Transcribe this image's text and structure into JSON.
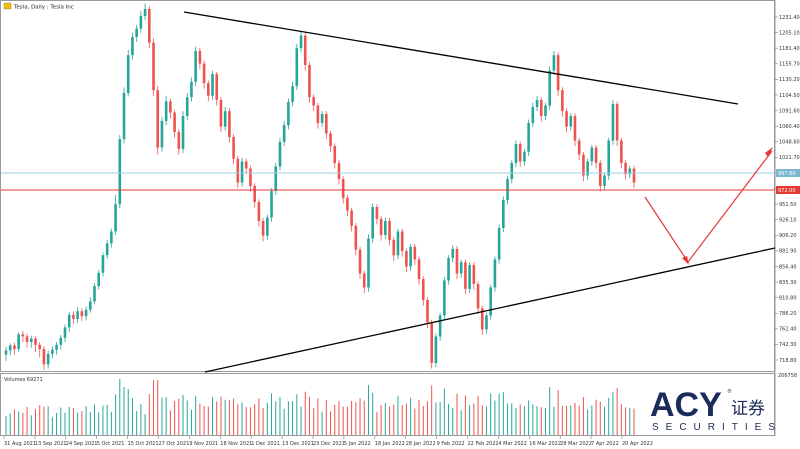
{
  "header": {
    "symbol_label": "Tesla, Daily : Tesla Inc"
  },
  "volume_panel": {
    "label": "Volumes 69271",
    "max_label": "206758"
  },
  "price_axis": {
    "ticks": [
      "1231.40",
      "1205.10",
      "1181.40",
      "1155.70",
      "1130.20",
      "1104.50",
      "1091.60",
      "1060.40",
      "1048.60",
      "1021.70",
      "996.10",
      "971.70",
      "951.50",
      "926.10",
      "906.20",
      "881.90",
      "856.40",
      "835.30",
      "810.80",
      "786.20",
      "762.40",
      "742.30",
      "718.80"
    ],
    "current_price_label": "997.80",
    "support_price_label": "972.00"
  },
  "time_axis": {
    "labels": [
      "31 Aug 2021",
      "13 Sep 2021",
      "24 Sep 2021",
      "5 Oct 2021",
      "15 Oct 2021",
      "27 Oct 2021",
      "9 Nov 2021",
      "18 Nov 2021",
      "1 Dec 2021",
      "13 Dec 2021",
      "23 Dec 2021",
      "5 Jan 2022",
      "18 Jan 2022",
      "28 Jan 2022",
      "9 Feb 2022",
      "22 Feb 2022",
      "4 Mar 2022",
      "16 Mar 2022",
      "28 Mar 2022",
      "7 Apr 2022",
      "20 Apr 2022"
    ]
  },
  "logo": {
    "brand": "ACY",
    "chinese": "证券",
    "subtitle": "SECURITIES",
    "registered": "®"
  },
  "colors": {
    "bull": "#26a69a",
    "bear": "#ef5350",
    "resistance": "#000000",
    "support_line": "#e53935",
    "price_line": "#9ecfe0",
    "arrow": "#e53935",
    "logo_navy": "#1b2b5a"
  },
  "chart_data": {
    "type": "candlestick",
    "title": "Tesla, Daily : Tesla Inc",
    "ylim": [
      712,
      1238
    ],
    "current_price": 997.8,
    "horizontal_support": 972.0,
    "trendlines": [
      {
        "name": "upper",
        "from": [
          "27 Oct 2021",
          1238
        ],
        "to": [
          "Apr 2022",
          1100
        ]
      },
      {
        "name": "lower",
        "from": [
          "5 Oct 2021",
          712
        ],
        "to": [
          "end",
          888
        ]
      }
    ],
    "projection": [
      [
        "20 Apr 2022",
        950
      ],
      [
        "May 2022",
        865
      ],
      [
        "end",
        1030
      ]
    ],
    "candles": [
      [
        734,
        740,
        728,
        725,
        745
      ],
      [
        740,
        747,
        736,
        733,
        750
      ],
      [
        747,
        742,
        738,
        734,
        751
      ],
      [
        742,
        763,
        740,
        738,
        766
      ],
      [
        763,
        760,
        756,
        752,
        768
      ],
      [
        760,
        752,
        748,
        744,
        764
      ],
      [
        752,
        757,
        749,
        744,
        761
      ],
      [
        757,
        748,
        742,
        738,
        760
      ],
      [
        748,
        742,
        736,
        730,
        752
      ],
      [
        742,
        720,
        716,
        712,
        746
      ],
      [
        720,
        735,
        718,
        714,
        740
      ],
      [
        735,
        741,
        733,
        729,
        746
      ],
      [
        741,
        748,
        737,
        734,
        752
      ],
      [
        748,
        758,
        745,
        741,
        762
      ],
      [
        758,
        773,
        756,
        752,
        777
      ],
      [
        773,
        791,
        771,
        766,
        795
      ],
      [
        791,
        785,
        781,
        778,
        796
      ],
      [
        785,
        796,
        783,
        779,
        802
      ],
      [
        796,
        789,
        786,
        782,
        800
      ],
      [
        789,
        798,
        787,
        783,
        803
      ],
      [
        798,
        810,
        797,
        794,
        816
      ],
      [
        810,
        832,
        809,
        806,
        836
      ],
      [
        832,
        851,
        831,
        827,
        855
      ],
      [
        851,
        876,
        849,
        846,
        880
      ],
      [
        876,
        893,
        875,
        871,
        898
      ],
      [
        893,
        910,
        891,
        887,
        914
      ],
      [
        910,
        949,
        908,
        905,
        962
      ],
      [
        949,
        1042,
        947,
        943,
        1048
      ],
      [
        1042,
        1108,
        1040,
        1036,
        1116
      ],
      [
        1108,
        1162,
        1106,
        1103,
        1170
      ],
      [
        1162,
        1188,
        1160,
        1156,
        1194
      ],
      [
        1188,
        1200,
        1186,
        1181,
        1205
      ],
      [
        1200,
        1218,
        1198,
        1194,
        1225
      ],
      [
        1218,
        1228,
        1216,
        1212,
        1236
      ],
      [
        1228,
        1180,
        1176,
        1172,
        1232
      ],
      [
        1180,
        1112,
        1108,
        1104,
        1186
      ],
      [
        1112,
        1030,
        1026,
        1020,
        1118
      ],
      [
        1030,
        1068,
        1028,
        1024,
        1074
      ],
      [
        1068,
        1096,
        1066,
        1062,
        1104
      ],
      [
        1096,
        1080,
        1076,
        1072,
        1100
      ],
      [
        1080,
        1052,
        1048,
        1044,
        1084
      ],
      [
        1052,
        1028,
        1024,
        1020,
        1056
      ],
      [
        1028,
        1075,
        1026,
        1022,
        1082
      ],
      [
        1075,
        1102,
        1073,
        1069,
        1108
      ],
      [
        1102,
        1124,
        1100,
        1096,
        1130
      ],
      [
        1124,
        1168,
        1122,
        1118,
        1174
      ],
      [
        1168,
        1150,
        1146,
        1142,
        1172
      ],
      [
        1150,
        1122,
        1118,
        1114,
        1154
      ],
      [
        1122,
        1104,
        1100,
        1096,
        1126
      ],
      [
        1104,
        1135,
        1102,
        1098,
        1140
      ],
      [
        1135,
        1098,
        1094,
        1090,
        1138
      ],
      [
        1098,
        1060,
        1056,
        1052,
        1102
      ],
      [
        1060,
        1082,
        1058,
        1054,
        1088
      ],
      [
        1082,
        1045,
        1041,
        1037,
        1086
      ],
      [
        1045,
        1014,
        1010,
        1006,
        1049
      ],
      [
        1014,
        980,
        976,
        972,
        1018
      ],
      [
        980,
        1010,
        978,
        974,
        1015
      ],
      [
        1010,
        1000,
        996,
        992,
        1014
      ],
      [
        1000,
        975,
        971,
        967,
        1004
      ],
      [
        975,
        952,
        948,
        944,
        979
      ],
      [
        952,
        925,
        921,
        917,
        956
      ],
      [
        925,
        904,
        900,
        896,
        929
      ],
      [
        904,
        930,
        902,
        898,
        934
      ],
      [
        930,
        968,
        928,
        924,
        972
      ],
      [
        968,
        1003,
        966,
        962,
        1008
      ],
      [
        1003,
        1038,
        1001,
        997,
        1044
      ],
      [
        1038,
        1062,
        1036,
        1032,
        1068
      ],
      [
        1062,
        1095,
        1060,
        1056,
        1100
      ],
      [
        1095,
        1118,
        1093,
        1089,
        1124
      ],
      [
        1118,
        1172,
        1116,
        1112,
        1178
      ],
      [
        1172,
        1190,
        1170,
        1166,
        1196
      ],
      [
        1190,
        1148,
        1144,
        1140,
        1194
      ],
      [
        1148,
        1102,
        1098,
        1094,
        1152
      ],
      [
        1102,
        1090,
        1086,
        1082,
        1106
      ],
      [
        1090,
        1065,
        1061,
        1057,
        1094
      ],
      [
        1065,
        1078,
        1063,
        1059,
        1082
      ],
      [
        1078,
        1050,
        1046,
        1042,
        1082
      ],
      [
        1050,
        1032,
        1028,
        1024,
        1054
      ],
      [
        1032,
        1008,
        1004,
        1000,
        1036
      ],
      [
        1008,
        985,
        981,
        977,
        1012
      ],
      [
        985,
        958,
        954,
        950,
        989
      ],
      [
        958,
        940,
        936,
        932,
        962
      ],
      [
        940,
        918,
        914,
        910,
        944
      ],
      [
        918,
        884,
        880,
        876,
        922
      ],
      [
        884,
        850,
        846,
        842,
        888
      ],
      [
        850,
        830,
        826,
        822,
        854
      ],
      [
        830,
        900,
        828,
        824,
        906
      ],
      [
        900,
        945,
        898,
        894,
        950
      ],
      [
        945,
        928,
        924,
        920,
        949
      ],
      [
        928,
        905,
        901,
        897,
        932
      ],
      [
        905,
        925,
        903,
        899,
        930
      ],
      [
        925,
        898,
        894,
        890,
        929
      ],
      [
        898,
        876,
        872,
        868,
        902
      ],
      [
        876,
        910,
        874,
        870,
        914
      ],
      [
        910,
        882,
        878,
        874,
        914
      ],
      [
        882,
        860,
        856,
        852,
        886
      ],
      [
        860,
        888,
        858,
        854,
        892
      ],
      [
        888,
        870,
        866,
        862,
        892
      ],
      [
        870,
        842,
        838,
        834,
        874
      ],
      [
        842,
        812,
        808,
        804,
        846
      ],
      [
        812,
        780,
        776,
        772,
        816
      ],
      [
        780,
        722,
        718,
        714,
        784
      ],
      [
        722,
        760,
        720,
        716,
        764
      ],
      [
        760,
        790,
        758,
        754,
        794
      ],
      [
        790,
        840,
        788,
        784,
        845
      ],
      [
        840,
        872,
        838,
        834,
        876
      ],
      [
        872,
        885,
        870,
        866,
        890
      ],
      [
        885,
        850,
        846,
        842,
        889
      ],
      [
        850,
        866,
        848,
        844,
        870
      ],
      [
        866,
        828,
        824,
        820,
        870
      ],
      [
        828,
        862,
        826,
        822,
        866
      ],
      [
        862,
        835,
        831,
        827,
        866
      ],
      [
        835,
        800,
        796,
        792,
        839
      ],
      [
        800,
        770,
        766,
        762,
        804
      ],
      [
        770,
        790,
        768,
        764,
        794
      ],
      [
        790,
        830,
        788,
        784,
        834
      ],
      [
        830,
        870,
        828,
        824,
        874
      ],
      [
        870,
        915,
        868,
        864,
        920
      ],
      [
        915,
        955,
        913,
        909,
        960
      ],
      [
        955,
        985,
        953,
        949,
        990
      ],
      [
        985,
        1008,
        983,
        979,
        1012
      ],
      [
        1008,
        1035,
        1006,
        1002,
        1040
      ],
      [
        1035,
        1010,
        1006,
        1002,
        1039
      ],
      [
        1010,
        1024,
        1008,
        1004,
        1028
      ],
      [
        1024,
        1065,
        1022,
        1018,
        1070
      ],
      [
        1065,
        1088,
        1063,
        1059,
        1094
      ],
      [
        1088,
        1098,
        1086,
        1082,
        1104
      ],
      [
        1098,
        1075,
        1071,
        1067,
        1102
      ],
      [
        1075,
        1090,
        1073,
        1069,
        1094
      ],
      [
        1090,
        1140,
        1088,
        1084,
        1146
      ],
      [
        1140,
        1162,
        1138,
        1134,
        1168
      ],
      [
        1162,
        1112,
        1108,
        1104,
        1166
      ],
      [
        1112,
        1082,
        1078,
        1074,
        1116
      ],
      [
        1082,
        1060,
        1056,
        1052,
        1086
      ],
      [
        1060,
        1075,
        1058,
        1054,
        1079
      ],
      [
        1075,
        1040,
        1036,
        1032,
        1079
      ],
      [
        1040,
        1020,
        1016,
        1012,
        1044
      ],
      [
        1020,
        990,
        986,
        982,
        1024
      ],
      [
        990,
        1010,
        988,
        984,
        1014
      ],
      [
        1010,
        1030,
        1008,
        1004,
        1034
      ],
      [
        1030,
        1008,
        1004,
        1000,
        1034
      ],
      [
        1008,
        975,
        971,
        967,
        1012
      ],
      [
        975,
        990,
        973,
        969,
        994
      ],
      [
        990,
        1040,
        988,
        984,
        1044
      ],
      [
        1040,
        1092,
        1038,
        1034,
        1098
      ],
      [
        1092,
        1040,
        1036,
        1032,
        1096
      ],
      [
        1040,
        1008,
        1004,
        1000,
        1044
      ],
      [
        1008,
        992,
        988,
        984,
        1012
      ],
      [
        992,
        1000,
        990,
        986,
        1004
      ],
      [
        1000,
        980,
        976,
        972,
        1004
      ]
    ],
    "volume_max": 206758,
    "volume_current": 69271
  }
}
